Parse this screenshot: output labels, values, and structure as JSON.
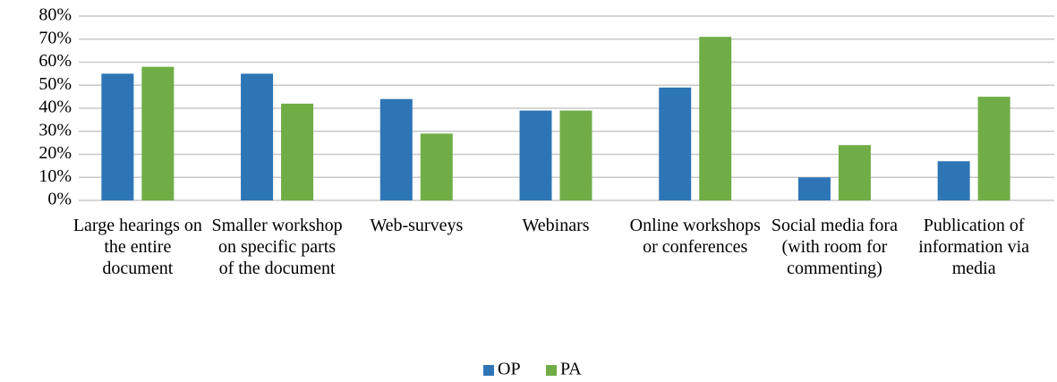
{
  "chart_data": {
    "type": "bar",
    "categories": [
      "Large hearings on the entire document",
      "Smaller workshop on specific parts of the document",
      "Web-surveys",
      "Webinars",
      "Online workshops or conferences",
      "Social media fora (with room for commenting)",
      "Publication of information via media"
    ],
    "series": [
      {
        "name": "OP",
        "color": "#2e75b6",
        "values": [
          55,
          55,
          44,
          39,
          49,
          10,
          17
        ]
      },
      {
        "name": "PA",
        "color": "#70ad47",
        "values": [
          58,
          42,
          29,
          39,
          71,
          24,
          45
        ]
      }
    ],
    "ylim": [
      0,
      80
    ],
    "yticks": [
      {
        "value": 0,
        "label": "0%"
      },
      {
        "value": 10,
        "label": "10%"
      },
      {
        "value": 20,
        "label": "20%"
      },
      {
        "value": 30,
        "label": "30%"
      },
      {
        "value": 40,
        "label": "40%"
      },
      {
        "value": 50,
        "label": "50%"
      },
      {
        "value": 60,
        "label": "60%"
      },
      {
        "value": 70,
        "label": "70%"
      },
      {
        "value": 80,
        "label": "80%"
      }
    ],
    "grid": true,
    "legend": "bottom"
  }
}
